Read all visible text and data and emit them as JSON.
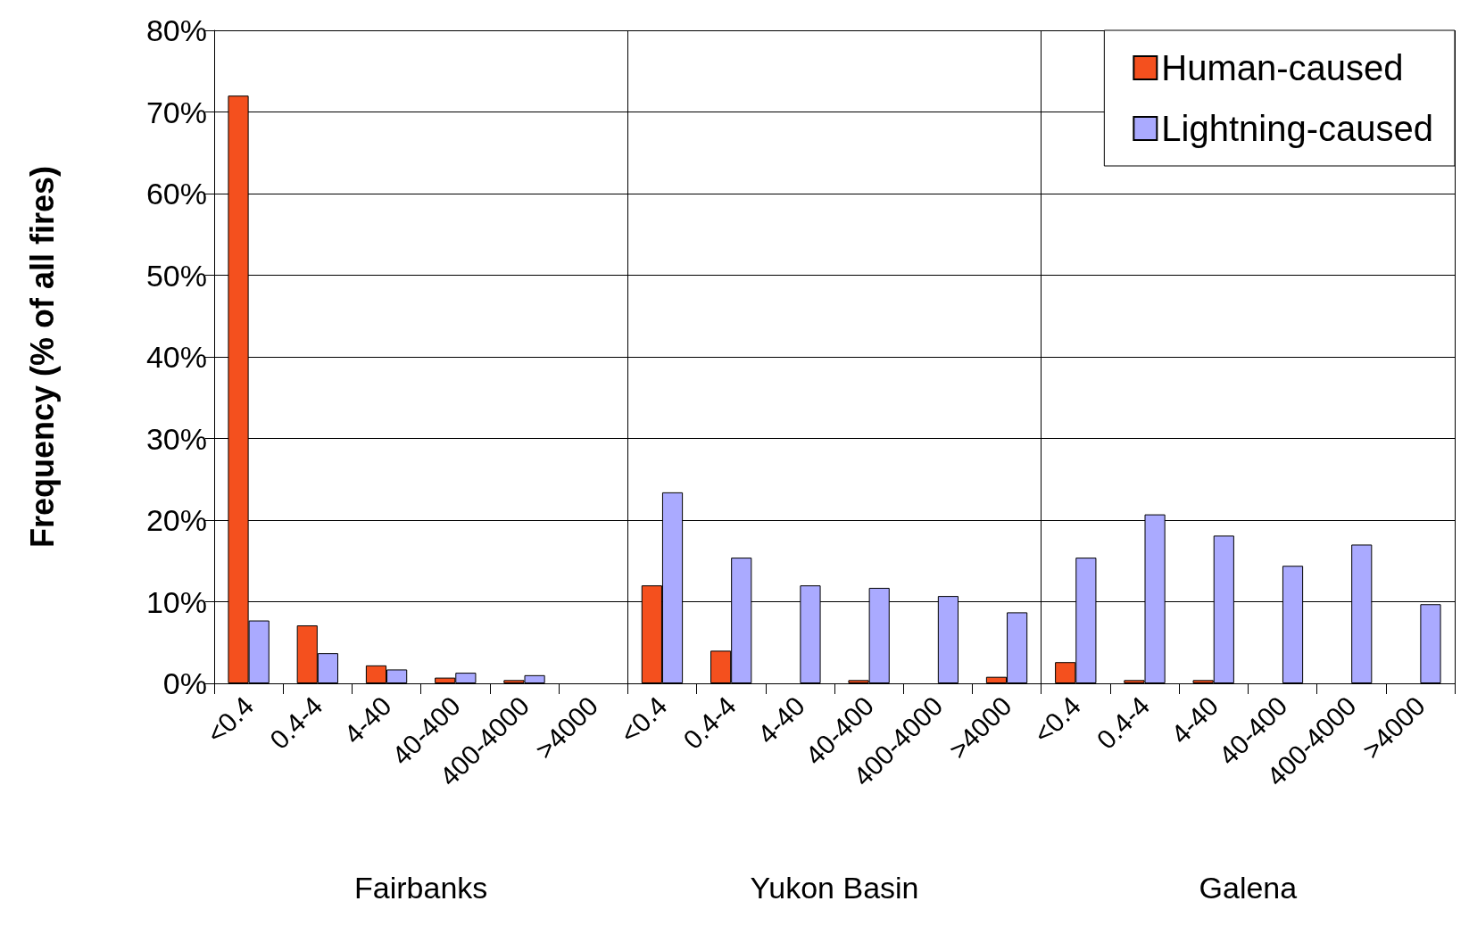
{
  "chart_data": {
    "type": "bar",
    "ylabel": "Frequency (% of all fires)",
    "categories": [
      "<0.4",
      "0.4-4",
      "4-40",
      "40-400",
      "400-4000",
      ">4000",
      "<0.4",
      "0.4-4",
      "4-40",
      "40-400",
      "400-4000",
      ">4000",
      "<0.4",
      "0.4-4",
      "4-40",
      "40-400",
      "400-4000",
      ">4000"
    ],
    "series": [
      {
        "name": "Human-caused",
        "color": "#f4501e",
        "values": [
          72,
          7.1,
          2.2,
          0.7,
          0.4,
          0,
          12,
          4,
          0,
          0.4,
          0,
          0.8,
          2.6,
          0.4,
          0.4,
          0,
          0,
          0
        ]
      },
      {
        "name": "Lightning-caused",
        "color": "#aaaaff",
        "values": [
          7.7,
          3.7,
          1.7,
          1.3,
          1,
          0,
          23.4,
          15.4,
          12,
          11.7,
          10.7,
          8.7,
          15.4,
          20.7,
          18.1,
          14.4,
          17,
          9.7
        ]
      }
    ],
    "ylim": [
      0,
      80
    ],
    "yticks": [
      {
        "value": 0,
        "label": "0%"
      },
      {
        "value": 10,
        "label": "10%"
      },
      {
        "value": 20,
        "label": "20%"
      },
      {
        "value": 30,
        "label": "30%"
      },
      {
        "value": 40,
        "label": "40%"
      },
      {
        "value": 50,
        "label": "50%"
      },
      {
        "value": 60,
        "label": "60%"
      },
      {
        "value": 70,
        "label": "70%"
      },
      {
        "value": 80,
        "label": "80%"
      }
    ],
    "annotations": [
      "Fairbanks",
      "Yukon Basin",
      "Galena"
    ],
    "grid": "y",
    "legend": "top right"
  }
}
